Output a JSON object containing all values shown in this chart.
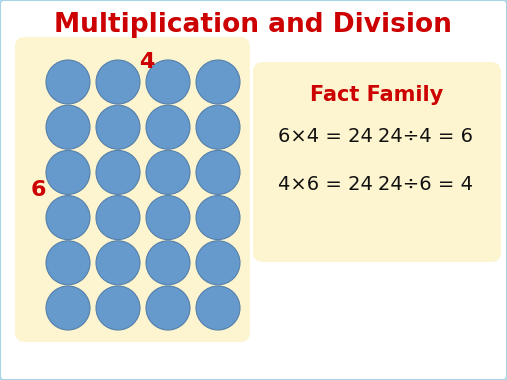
{
  "title": "Multiplication and Division",
  "title_color": "#cc0000",
  "title_fontsize": 19,
  "background_color": "#ffffff",
  "border_color": "#a8d4e6",
  "grid_bg": "#fdf5d0",
  "circle_color": "#6699cc",
  "circle_edge_color": "#5580aa",
  "rows": 6,
  "cols": 4,
  "label_4": "4",
  "label_6": "6",
  "label_color": "#cc0000",
  "label_fontsize": 16,
  "fact_family_title": "Fact Family",
  "fact_family_title_color": "#cc0000",
  "fact_family_title_fontsize": 15,
  "fact_line1_left": "6×4 = 24",
  "fact_line1_right": "24÷4 = 6",
  "fact_line2_left": "4×6 = 24",
  "fact_line2_right": "24÷6 = 4",
  "fact_color": "#111111",
  "fact_fontsize": 14
}
